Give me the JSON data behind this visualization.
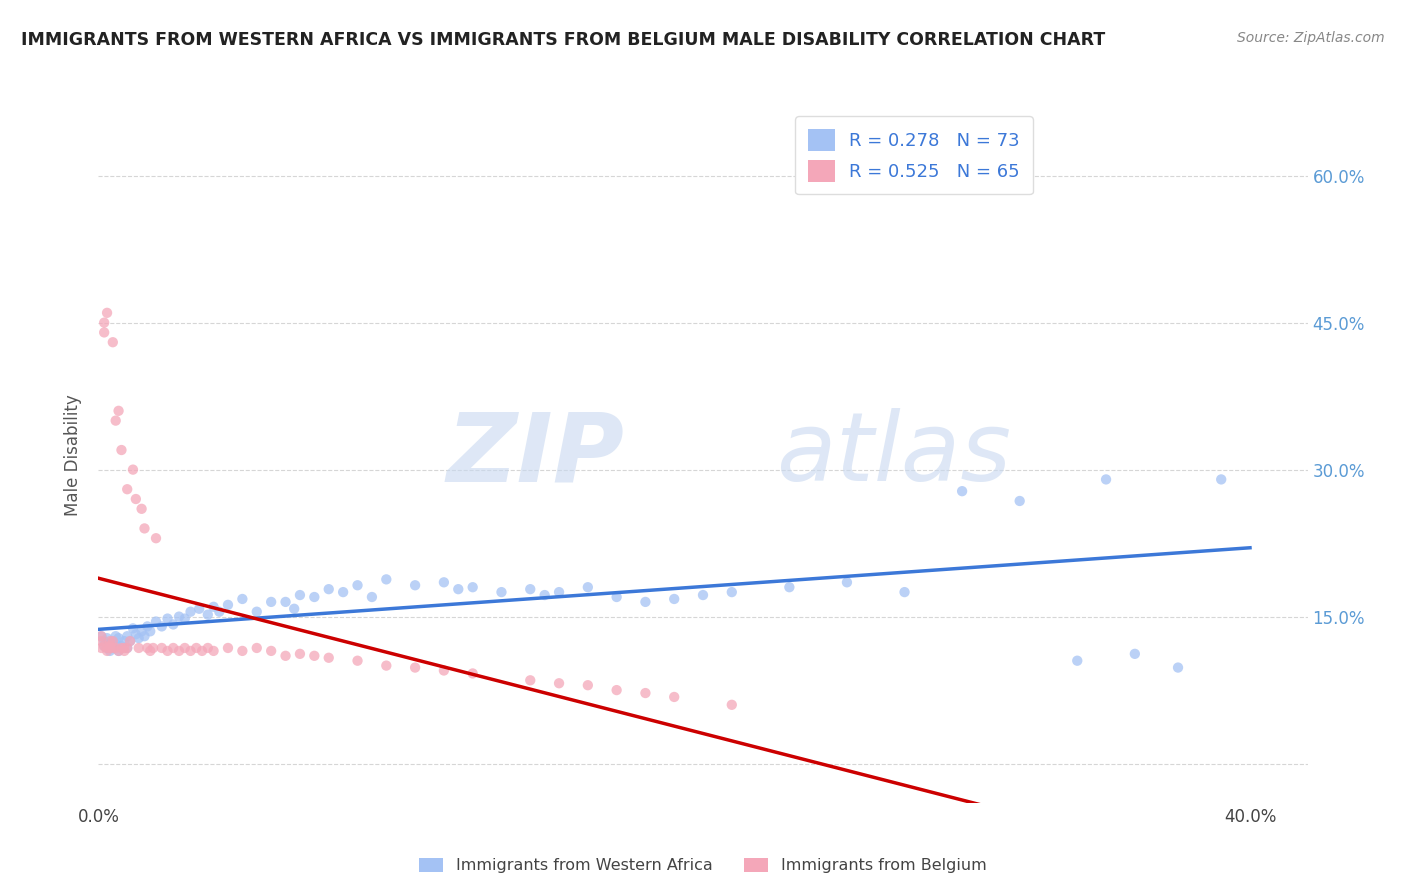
{
  "title": "IMMIGRANTS FROM WESTERN AFRICA VS IMMIGRANTS FROM BELGIUM MALE DISABILITY CORRELATION CHART",
  "source": "Source: ZipAtlas.com",
  "ylabel": "Male Disability",
  "xlim": [
    0.0,
    0.42
  ],
  "ylim": [
    -0.04,
    0.67
  ],
  "color_blue": "#a4c2f4",
  "color_pink": "#f4a7b9",
  "color_trendline_blue": "#3c78d8",
  "color_trendline_pink": "#cc0000",
  "r_blue": 0.278,
  "n_blue": 73,
  "r_pink": 0.525,
  "n_pink": 65,
  "legend_label_blue": "Immigrants from Western Africa",
  "legend_label_pink": "Immigrants from Belgium",
  "watermark_zip": "ZIP",
  "watermark_atlas": "atlas",
  "background_color": "#ffffff",
  "ytick_positions": [
    0.0,
    0.15,
    0.3,
    0.45,
    0.6
  ],
  "ytick_labels": [
    "",
    "15.0%",
    "30.0%",
    "45.0%",
    "60.0%"
  ],
  "xtick_positions": [
    0.0,
    0.08,
    0.16,
    0.24,
    0.32,
    0.4
  ],
  "xtick_labels": [
    "0.0%",
    "",
    "",
    "",
    "",
    "40.0%"
  ],
  "blue_x": [
    0.001,
    0.002,
    0.002,
    0.003,
    0.003,
    0.004,
    0.004,
    0.005,
    0.005,
    0.006,
    0.006,
    0.007,
    0.007,
    0.008,
    0.009,
    0.01,
    0.01,
    0.011,
    0.012,
    0.013,
    0.014,
    0.015,
    0.016,
    0.017,
    0.018,
    0.02,
    0.022,
    0.024,
    0.026,
    0.028,
    0.03,
    0.032,
    0.035,
    0.038,
    0.04,
    0.042,
    0.045,
    0.05,
    0.055,
    0.06,
    0.065,
    0.068,
    0.07,
    0.075,
    0.08,
    0.085,
    0.09,
    0.095,
    0.1,
    0.11,
    0.12,
    0.125,
    0.13,
    0.14,
    0.15,
    0.155,
    0.16,
    0.17,
    0.18,
    0.19,
    0.2,
    0.21,
    0.22,
    0.24,
    0.26,
    0.28,
    0.3,
    0.32,
    0.34,
    0.35,
    0.36,
    0.375,
    0.39
  ],
  "blue_y": [
    0.13,
    0.125,
    0.12,
    0.128,
    0.118,
    0.122,
    0.115,
    0.125,
    0.118,
    0.13,
    0.122,
    0.128,
    0.115,
    0.12,
    0.125,
    0.13,
    0.118,
    0.125,
    0.138,
    0.132,
    0.128,
    0.135,
    0.13,
    0.14,
    0.135,
    0.145,
    0.14,
    0.148,
    0.142,
    0.15,
    0.148,
    0.155,
    0.158,
    0.152,
    0.16,
    0.155,
    0.162,
    0.168,
    0.155,
    0.165,
    0.165,
    0.158,
    0.172,
    0.17,
    0.178,
    0.175,
    0.182,
    0.17,
    0.188,
    0.182,
    0.185,
    0.178,
    0.18,
    0.175,
    0.178,
    0.172,
    0.175,
    0.18,
    0.17,
    0.165,
    0.168,
    0.172,
    0.175,
    0.18,
    0.185,
    0.175,
    0.278,
    0.268,
    0.105,
    0.29,
    0.112,
    0.098,
    0.29
  ],
  "pink_x": [
    0.001,
    0.001,
    0.001,
    0.002,
    0.002,
    0.002,
    0.003,
    0.003,
    0.003,
    0.004,
    0.004,
    0.004,
    0.005,
    0.005,
    0.005,
    0.006,
    0.006,
    0.007,
    0.007,
    0.008,
    0.008,
    0.009,
    0.009,
    0.01,
    0.01,
    0.011,
    0.012,
    0.013,
    0.014,
    0.015,
    0.016,
    0.017,
    0.018,
    0.019,
    0.02,
    0.022,
    0.024,
    0.026,
    0.028,
    0.03,
    0.032,
    0.034,
    0.036,
    0.038,
    0.04,
    0.045,
    0.05,
    0.055,
    0.06,
    0.065,
    0.07,
    0.075,
    0.08,
    0.09,
    0.1,
    0.11,
    0.12,
    0.13,
    0.15,
    0.16,
    0.17,
    0.18,
    0.19,
    0.2,
    0.22
  ],
  "pink_y": [
    0.125,
    0.118,
    0.13,
    0.45,
    0.44,
    0.12,
    0.46,
    0.118,
    0.115,
    0.125,
    0.12,
    0.118,
    0.43,
    0.125,
    0.118,
    0.35,
    0.118,
    0.36,
    0.115,
    0.32,
    0.118,
    0.118,
    0.115,
    0.28,
    0.118,
    0.125,
    0.3,
    0.27,
    0.118,
    0.26,
    0.24,
    0.118,
    0.115,
    0.118,
    0.23,
    0.118,
    0.115,
    0.118,
    0.115,
    0.118,
    0.115,
    0.118,
    0.115,
    0.118,
    0.115,
    0.118,
    0.115,
    0.118,
    0.115,
    0.11,
    0.112,
    0.11,
    0.108,
    0.105,
    0.1,
    0.098,
    0.095,
    0.092,
    0.085,
    0.082,
    0.08,
    0.075,
    0.072,
    0.068,
    0.06
  ]
}
